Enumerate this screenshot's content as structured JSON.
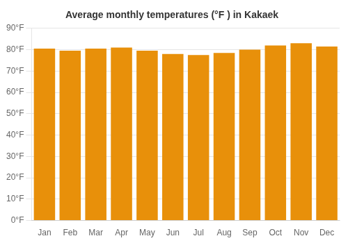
{
  "chart_data": {
    "type": "bar",
    "title": "Average monthly temperatures (°F ) in Kakaek",
    "categories": [
      "Jan",
      "Feb",
      "Mar",
      "Apr",
      "May",
      "Jun",
      "Jul",
      "Aug",
      "Sep",
      "Oct",
      "Nov",
      "Dec"
    ],
    "values": [
      80.5,
      79.5,
      80.5,
      81.0,
      79.5,
      78.0,
      77.5,
      78.5,
      80.0,
      82.0,
      83.0,
      81.5
    ],
    "color": "#E8900A",
    "ylim": [
      0,
      90
    ],
    "yticks": [
      {
        "value": 0,
        "label": "0°F"
      },
      {
        "value": 10,
        "label": "10°F"
      },
      {
        "value": 20,
        "label": "20°F"
      },
      {
        "value": 30,
        "label": "30°F"
      },
      {
        "value": 40,
        "label": "40°F"
      },
      {
        "value": 50,
        "label": "50°F"
      },
      {
        "value": 60,
        "label": "60°F"
      },
      {
        "value": 70,
        "label": "70°F"
      },
      {
        "value": 80,
        "label": "80°F"
      },
      {
        "value": 90,
        "label": "90°F"
      }
    ],
    "grid": true
  }
}
